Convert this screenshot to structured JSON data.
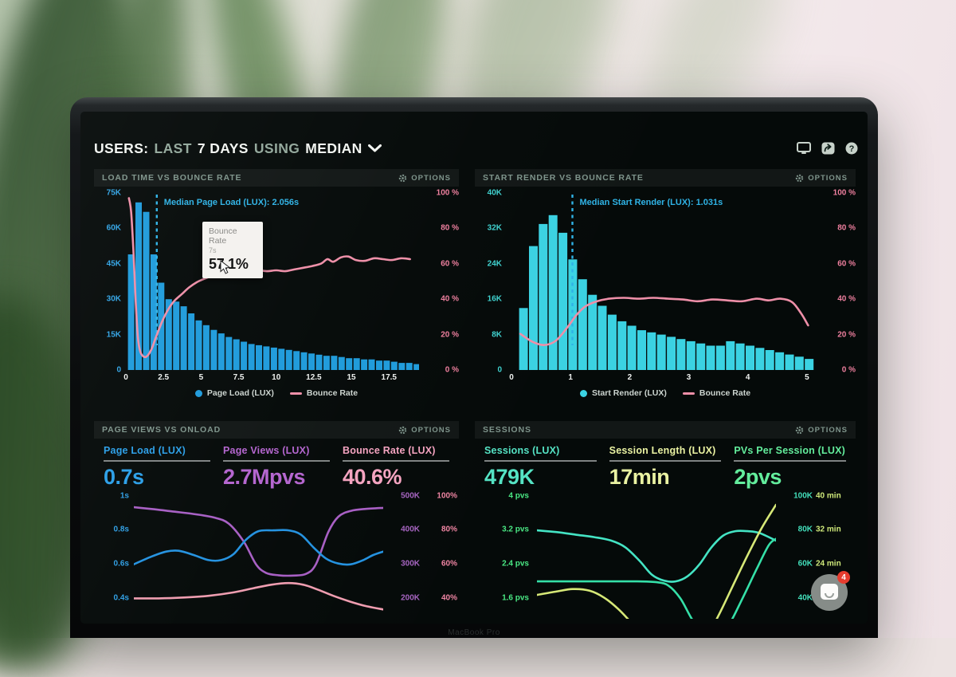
{
  "ui": {
    "header": {
      "parts": [
        "USERS:",
        "LAST",
        "7 DAYS",
        "USING",
        "MEDIAN"
      ]
    },
    "options_label": "OPTIONS",
    "chat_badge": "4",
    "brand": "MacBook Pro"
  },
  "colors": {
    "bar_blue": "#1f9bdb",
    "bar_cyan": "#3bd2e2",
    "bounce_pink": "#ee8fa8",
    "median_blue": "#2fb3e6",
    "screen_bg": "#050a09",
    "title_green_gray": "#7e948b"
  },
  "chart_data": [
    {
      "type": "histogram+line",
      "title": "LOAD TIME VS BOUNCE RATE",
      "x_unit": "seconds",
      "x_ticks": [
        0,
        2.5,
        5,
        7.5,
        10,
        12.5,
        15,
        17.5
      ],
      "x_max": 19.5,
      "left_axis": {
        "labels": [
          "75K",
          "60K",
          "45K",
          "30K",
          "15K",
          "0"
        ],
        "max": 75,
        "color": "#32a5e6"
      },
      "right_axis": {
        "labels": [
          "100 %",
          "80 %",
          "60 %",
          "40 %",
          "20 %",
          "0 %"
        ],
        "max": 103,
        "color": "#ee7f9e"
      },
      "bars": {
        "name": "Page Load (LUX)",
        "color": "#1f9bdb",
        "start": 0.1,
        "step": 0.5,
        "values": [
          49,
          71,
          67,
          49,
          37,
          30,
          29,
          27,
          24,
          21,
          19,
          17,
          15.5,
          14,
          13,
          12,
          11,
          10.5,
          10,
          9.5,
          9,
          8.5,
          8,
          7.5,
          7,
          6.5,
          6,
          6,
          5.5,
          5,
          5,
          4.5,
          4.5,
          4,
          4,
          3.5,
          3,
          3,
          2.5
        ]
      },
      "line": {
        "name": "Bounce Rate",
        "color": "#ee8fa8",
        "points": [
          [
            0.2,
            100
          ],
          [
            0.35,
            92
          ],
          [
            0.5,
            70
          ],
          [
            0.65,
            40
          ],
          [
            0.8,
            19
          ],
          [
            0.95,
            11
          ],
          [
            1.15,
            8
          ],
          [
            1.4,
            8
          ],
          [
            1.7,
            12
          ],
          [
            2.0,
            19
          ],
          [
            2.4,
            28
          ],
          [
            2.8,
            35
          ],
          [
            3.2,
            40
          ],
          [
            3.7,
            44
          ],
          [
            4.2,
            48
          ],
          [
            4.7,
            51
          ],
          [
            5.2,
            53
          ],
          [
            5.8,
            55
          ],
          [
            6.4,
            56
          ],
          [
            7.0,
            57.1
          ],
          [
            7.6,
            58
          ],
          [
            8.2,
            57
          ],
          [
            8.8,
            58
          ],
          [
            9.4,
            57.5
          ],
          [
            10.0,
            58
          ],
          [
            10.6,
            57.5
          ],
          [
            11.2,
            58.5
          ],
          [
            11.8,
            59.5
          ],
          [
            12.4,
            60.5
          ],
          [
            13.0,
            62
          ],
          [
            13.4,
            64.5
          ],
          [
            13.8,
            63
          ],
          [
            14.3,
            65.5
          ],
          [
            14.8,
            66
          ],
          [
            15.3,
            64
          ],
          [
            15.9,
            63.5
          ],
          [
            16.5,
            65
          ],
          [
            17.1,
            64.5
          ],
          [
            17.7,
            64
          ],
          [
            18.3,
            65
          ],
          [
            18.9,
            64.5
          ]
        ]
      },
      "median_line": {
        "x": 2.056,
        "label": "Median Page Load (LUX): 2.056s",
        "color": "#2fb3e6"
      },
      "tooltip": {
        "label": "Bounce Rate",
        "sub": "7s",
        "value": "57.1%"
      }
    },
    {
      "type": "histogram+line",
      "title": "START RENDER VS BOUNCE RATE",
      "x_unit": "seconds",
      "x_ticks": [
        0,
        1,
        2,
        3,
        4,
        5
      ],
      "x_max": 5.15,
      "left_axis": {
        "labels": [
          "40K",
          "32K",
          "24K",
          "16K",
          "8K",
          "0"
        ],
        "max": 40,
        "color": "#3fd2cf"
      },
      "right_axis": {
        "labels": [
          "100 %",
          "80 %",
          "60 %",
          "40 %",
          "20 %",
          "0 %"
        ],
        "max": 103,
        "color": "#ee7f9e"
      },
      "bars": {
        "name": "Start Render (LUX)",
        "color": "#3bd2e2",
        "start": 0.12,
        "step": 0.1667,
        "values": [
          14,
          28,
          33,
          35,
          31,
          25,
          20.5,
          17,
          14.5,
          12.5,
          11,
          10,
          9,
          8.5,
          8,
          7.5,
          7,
          6.5,
          6,
          5.5,
          5.5,
          6.5,
          6,
          5.5,
          5,
          4.5,
          4,
          3.5,
          3,
          2.5
        ]
      },
      "line": {
        "name": "Bounce Rate",
        "color": "#ee8fa8",
        "points": [
          [
            0.15,
            21
          ],
          [
            0.35,
            16.5
          ],
          [
            0.55,
            14.5
          ],
          [
            0.75,
            17
          ],
          [
            0.95,
            25
          ],
          [
            1.1,
            32
          ],
          [
            1.25,
            37
          ],
          [
            1.45,
            40
          ],
          [
            1.65,
            41.5
          ],
          [
            1.9,
            42
          ],
          [
            2.15,
            41.5
          ],
          [
            2.4,
            42
          ],
          [
            2.65,
            41.5
          ],
          [
            2.9,
            41
          ],
          [
            3.15,
            40
          ],
          [
            3.4,
            41
          ],
          [
            3.65,
            40.5
          ],
          [
            3.9,
            40
          ],
          [
            4.15,
            41.5
          ],
          [
            4.35,
            40.5
          ],
          [
            4.55,
            41.5
          ],
          [
            4.75,
            39.5
          ],
          [
            4.9,
            33
          ],
          [
            5.02,
            26
          ]
        ]
      },
      "median_line": {
        "x": 1.031,
        "label": "Median Start Render (LUX): 1.031s",
        "color": "#2fb3e6"
      }
    },
    {
      "type": "multi-line",
      "title": "PAGE VIEWS VS ONLOAD",
      "metrics": [
        {
          "label": "Page Load (LUX)",
          "value": "0.7s",
          "color": "#2b9fe8"
        },
        {
          "label": "Page Views (LUX)",
          "value": "2.7Mpvs",
          "color": "#b465cf"
        },
        {
          "label": "Bounce Rate (LUX)",
          "value": "40.6%",
          "color": "#f4a3c0"
        }
      ],
      "rows": [
        {
          "left": "1s",
          "k": "500K",
          "pct": "100%"
        },
        {
          "left": "0.8s",
          "k": "400K",
          "pct": "80%"
        },
        {
          "left": "0.6s",
          "k": "300K",
          "pct": "60%"
        },
        {
          "left": "0.4s",
          "k": "200K",
          "pct": "40%"
        }
      ],
      "row_colors": {
        "left": "#2f9fe4",
        "k": "#a765c2",
        "pct": "#ef85a3"
      },
      "axes": {
        "sec": {
          "top": 1.03,
          "bottom": 0.28
        },
        "k": {
          "top": 515,
          "bottom": 140
        },
        "pct": {
          "top": 103,
          "bottom": 28
        }
      },
      "series": [
        {
          "name": "Page Views (LUX)",
          "color": "#a75fc4",
          "axis": "k",
          "points": [
            [
              0,
              468
            ],
            [
              0.08,
              462
            ],
            [
              0.16,
              455
            ],
            [
              0.24,
              448
            ],
            [
              0.32,
              438
            ],
            [
              0.38,
              420
            ],
            [
              0.44,
              368
            ],
            [
              0.49,
              300
            ],
            [
              0.53,
              275
            ],
            [
              0.58,
              268
            ],
            [
              0.64,
              267
            ],
            [
              0.69,
              272
            ],
            [
              0.73,
              300
            ],
            [
              0.78,
              395
            ],
            [
              0.82,
              440
            ],
            [
              0.87,
              457
            ],
            [
              0.93,
              463
            ],
            [
              1,
              466
            ]
          ]
        },
        {
          "name": "Page Load (LUX)",
          "color": "#2492e0",
          "axis": "sec",
          "points": [
            [
              0,
              0.6
            ],
            [
              0.07,
              0.645
            ],
            [
              0.13,
              0.675
            ],
            [
              0.18,
              0.68
            ],
            [
              0.24,
              0.655
            ],
            [
              0.3,
              0.625
            ],
            [
              0.35,
              0.625
            ],
            [
              0.4,
              0.66
            ],
            [
              0.45,
              0.745
            ],
            [
              0.5,
              0.795
            ],
            [
              0.56,
              0.8
            ],
            [
              0.62,
              0.8
            ],
            [
              0.67,
              0.775
            ],
            [
              0.72,
              0.7
            ],
            [
              0.77,
              0.635
            ],
            [
              0.82,
              0.605
            ],
            [
              0.87,
              0.6
            ],
            [
              0.92,
              0.625
            ],
            [
              0.96,
              0.655
            ],
            [
              1,
              0.675
            ]
          ]
        },
        {
          "name": "Bounce Rate (LUX)",
          "color": "#ef9db0",
          "axis": "pct",
          "points": [
            [
              0,
              40
            ],
            [
              0.1,
              40
            ],
            [
              0.2,
              40.5
            ],
            [
              0.3,
              41.5
            ],
            [
              0.4,
              43.5
            ],
            [
              0.48,
              46
            ],
            [
              0.55,
              48
            ],
            [
              0.62,
              49
            ],
            [
              0.68,
              48
            ],
            [
              0.74,
              45
            ],
            [
              0.8,
              41.5
            ],
            [
              0.87,
              38
            ],
            [
              0.93,
              35.5
            ],
            [
              1,
              33.5
            ]
          ]
        }
      ]
    },
    {
      "type": "multi-line",
      "title": "SESSIONS",
      "metrics": [
        {
          "label": "Sessions (LUX)",
          "value": "479K",
          "color": "#55e3c4"
        },
        {
          "label": "Session Length (LUX)",
          "value": "17min",
          "color": "#eaf2a2"
        },
        {
          "label": "PVs Per Session (LUX)",
          "value": "2pvs",
          "color": "#63ed9c"
        }
      ],
      "rows": [
        {
          "left": "4 pvs",
          "k": "100K",
          "min": "40 min"
        },
        {
          "left": "3.2 pvs",
          "k": "80K",
          "min": "32 min"
        },
        {
          "left": "2.4 pvs",
          "k": "60K",
          "min": "24 min"
        },
        {
          "left": "1.6 pvs",
          "k": "40K",
          "min": ""
        }
      ],
      "row_colors": {
        "left": "#4ae884",
        "k": "#43dfbb",
        "min": "#cfe97a"
      },
      "axes": {
        "pvs": {
          "top": 4.12,
          "bottom": 1.12
        },
        "k": {
          "top": 103,
          "bottom": 28
        },
        "min": {
          "top": 41.2,
          "bottom": 11.2
        }
      },
      "series": [
        {
          "name": "Sessions (LUX)",
          "color": "#44e4c4",
          "axis": "k",
          "points": [
            [
              0,
              80
            ],
            [
              0.08,
              79
            ],
            [
              0.16,
              77.5
            ],
            [
              0.24,
              76
            ],
            [
              0.31,
              74
            ],
            [
              0.37,
              70
            ],
            [
              0.43,
              62
            ],
            [
              0.48,
              54
            ],
            [
              0.53,
              50.5
            ],
            [
              0.58,
              50
            ],
            [
              0.63,
              53
            ],
            [
              0.68,
              60
            ],
            [
              0.73,
              70
            ],
            [
              0.78,
              77
            ],
            [
              0.83,
              79.5
            ],
            [
              0.88,
              79.5
            ],
            [
              0.93,
              78.5
            ],
            [
              1,
              74
            ]
          ]
        },
        {
          "name": "PVs Per Session (LUX)",
          "color": "#35e0a8",
          "axis": "pvs",
          "points": [
            [
              0,
              2.0
            ],
            [
              0.15,
              2.0
            ],
            [
              0.3,
              2.0
            ],
            [
              0.42,
              2.0
            ],
            [
              0.5,
              1.98
            ],
            [
              0.55,
              1.9
            ],
            [
              0.6,
              1.6
            ],
            [
              0.65,
              1.1
            ],
            [
              0.7,
              0.75
            ],
            [
              0.75,
              0.7
            ],
            [
              0.8,
              0.95
            ],
            [
              0.86,
              1.6
            ],
            [
              0.92,
              2.3
            ],
            [
              0.97,
              2.85
            ],
            [
              1,
              3.0
            ]
          ]
        },
        {
          "name": "Session Length (LUX)",
          "color": "#d6e877",
          "axis": "min",
          "points": [
            [
              0,
              16.8
            ],
            [
              0.08,
              17.6
            ],
            [
              0.15,
              18.2
            ],
            [
              0.22,
              17.8
            ],
            [
              0.28,
              16.2
            ],
            [
              0.34,
              13.5
            ],
            [
              0.4,
              10
            ],
            [
              0.46,
              6.5
            ],
            [
              0.52,
              3.5
            ],
            [
              0.58,
              2
            ],
            [
              0.64,
              3
            ],
            [
              0.7,
              6
            ],
            [
              0.76,
              12
            ],
            [
              0.82,
              19
            ],
            [
              0.88,
              26
            ],
            [
              0.94,
              32.5
            ],
            [
              1,
              38
            ]
          ]
        }
      ]
    }
  ]
}
